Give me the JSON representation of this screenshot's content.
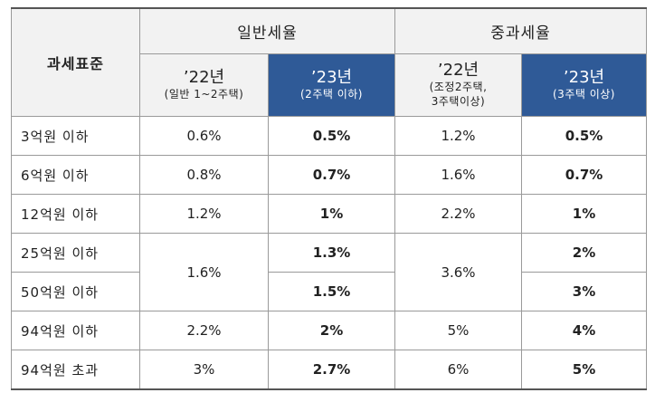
{
  "header": {
    "corner": "과세표준",
    "group_general": "일반세율",
    "group_heavy": "중과세율",
    "cols": [
      {
        "year": "’22년",
        "sub": [
          "(일반 1~2주택)"
        ]
      },
      {
        "year": "’23년",
        "sub": [
          "(2주택 이하)"
        ]
      },
      {
        "year": "’22년",
        "sub": [
          "(조정2주택,",
          "3주택이상)"
        ]
      },
      {
        "year": "’23년",
        "sub": [
          "(3주택 이상)"
        ]
      }
    ]
  },
  "rows": [
    {
      "std": "3억원 이하",
      "g22": "0.6%",
      "g23": "0.5%",
      "h22": "1.2%",
      "h23": "0.5%"
    },
    {
      "std": "6억원 이하",
      "g22": "0.8%",
      "g23": "0.7%",
      "h22": "1.6%",
      "h23": "0.7%"
    },
    {
      "std": "12억원 이하",
      "g22": "1.2%",
      "g23": "1%",
      "h22": "2.2%",
      "h23": "1%"
    },
    {
      "std": "25억원 이하",
      "g22": "1.6%",
      "g23": "1.3%",
      "h22": "3.6%",
      "h23": "2%"
    },
    {
      "std": "50억원 이하",
      "g23": "1.5%",
      "h23": "3%"
    },
    {
      "std": "94억원 이하",
      "g22": "2.2%",
      "g23": "2%",
      "h22": "5%",
      "h23": "4%"
    },
    {
      "std": "94억원 초과",
      "g22": "3%",
      "g23": "2.7%",
      "h22": "6%",
      "h23": "5%"
    }
  ],
  "colors": {
    "header_bg": "#f2f2f2",
    "accent_header_bg": "#2f5a97",
    "accent_header_text": "#ffffff",
    "border": "#9a9a9a"
  }
}
